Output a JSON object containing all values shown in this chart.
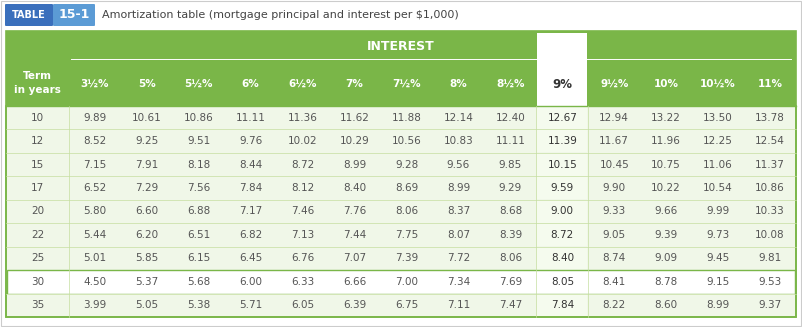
{
  "title_table": "TABLE",
  "title_num": "15-1",
  "title_desc": "Amortization table (mortgage principal and interest per $1,000)",
  "header_interest": "INTEREST",
  "col_header": [
    "Term\nin years",
    "3½%",
    "5%",
    "5½%",
    "6%",
    "6½%",
    "7%",
    "7½%",
    "8%",
    "8½%",
    "9%",
    "9½%",
    "10%",
    "10½%",
    "11%"
  ],
  "highlight_col_idx": 10,
  "rows": [
    [
      10,
      9.89,
      10.61,
      10.86,
      11.11,
      11.36,
      11.62,
      11.88,
      12.14,
      12.4,
      12.67,
      12.94,
      13.22,
      13.5,
      13.78
    ],
    [
      12,
      8.52,
      9.25,
      9.51,
      9.76,
      10.02,
      10.29,
      10.56,
      10.83,
      11.11,
      11.39,
      11.67,
      11.96,
      12.25,
      12.54
    ],
    [
      15,
      7.15,
      7.91,
      8.18,
      8.44,
      8.72,
      8.99,
      9.28,
      9.56,
      9.85,
      10.15,
      10.45,
      10.75,
      11.06,
      11.37
    ],
    [
      17,
      6.52,
      7.29,
      7.56,
      7.84,
      8.12,
      8.4,
      8.69,
      8.99,
      9.29,
      9.59,
      9.9,
      10.22,
      10.54,
      10.86
    ],
    [
      20,
      5.8,
      6.6,
      6.88,
      7.17,
      7.46,
      7.76,
      8.06,
      8.37,
      8.68,
      9.0,
      9.33,
      9.66,
      9.99,
      10.33
    ],
    [
      22,
      5.44,
      6.2,
      6.51,
      6.82,
      7.13,
      7.44,
      7.75,
      8.07,
      8.39,
      8.72,
      9.05,
      9.39,
      9.73,
      10.08
    ],
    [
      25,
      5.01,
      5.85,
      6.15,
      6.45,
      6.76,
      7.07,
      7.39,
      7.72,
      8.06,
      8.4,
      8.74,
      9.09,
      9.45,
      9.81
    ],
    [
      30,
      4.5,
      5.37,
      5.68,
      6.0,
      6.33,
      6.66,
      7.0,
      7.34,
      7.69,
      8.05,
      8.41,
      8.78,
      9.15,
      9.53
    ],
    [
      35,
      3.99,
      5.05,
      5.38,
      5.71,
      6.05,
      6.39,
      6.75,
      7.11,
      7.47,
      7.84,
      8.22,
      8.6,
      8.99,
      9.37
    ]
  ],
  "green_bg": "#7ab648",
  "white": "#ffffff",
  "light_row": "#f0f7e8",
  "blue_table": "#3a6fbc",
  "blue_num": "#5b9bd5",
  "border_color": "#7ab648",
  "body_border": "#a8c878",
  "text_dark": "#555555",
  "text_green_col": "#444444",
  "row_highlight_idx": 7,
  "highlight_col_bg": "#f5fbee",
  "separator_color": "#c5dea0"
}
